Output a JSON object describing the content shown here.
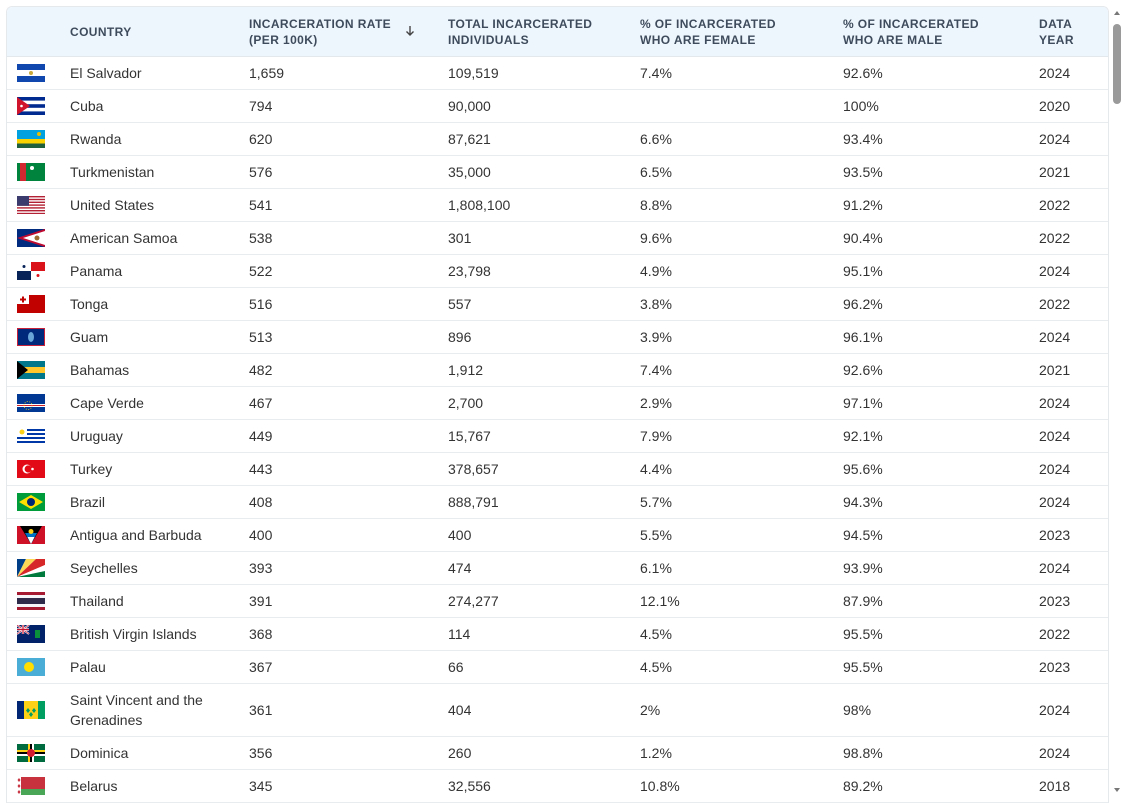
{
  "table": {
    "headers": [
      "COUNTRY",
      "INCARCERATION RATE (PER 100K)",
      "TOTAL INCARCERATED INDIVIDUALS",
      "% OF INCARCERATED WHO ARE FEMALE",
      "% OF INCARCERATED WHO ARE MALE",
      "DATA YEAR"
    ],
    "rows": [
      [
        "El Salvador",
        "1,659",
        "109,519",
        "7.4%",
        "92.6%",
        "2024"
      ],
      [
        "Cuba",
        "794",
        "90,000",
        null,
        "100%",
        "2020"
      ],
      [
        "Rwanda",
        "620",
        "87,621",
        "6.6%",
        "93.4%",
        "2024"
      ],
      [
        "Turkmenistan",
        "576",
        "35,000",
        "6.5%",
        "93.5%",
        "2021"
      ],
      [
        "United States",
        "541",
        "1,808,100",
        "8.8%",
        "91.2%",
        "2022"
      ],
      [
        "American Samoa",
        "538",
        "301",
        "9.6%",
        "90.4%",
        "2022"
      ],
      [
        "Panama",
        "522",
        "23,798",
        "4.9%",
        "95.1%",
        "2024"
      ],
      [
        "Tonga",
        "516",
        "557",
        "3.8%",
        "96.2%",
        "2022"
      ],
      [
        "Guam",
        "513",
        "896",
        "3.9%",
        "96.1%",
        "2024"
      ],
      [
        "Bahamas",
        "482",
        "1,912",
        "7.4%",
        "92.6%",
        "2021"
      ],
      [
        "Cape Verde",
        "467",
        "2,700",
        "2.9%",
        "97.1%",
        "2024"
      ],
      [
        "Uruguay",
        "449",
        "15,767",
        "7.9%",
        "92.1%",
        "2024"
      ],
      [
        "Turkey",
        "443",
        "378,657",
        "4.4%",
        "95.6%",
        "2024"
      ],
      [
        "Brazil",
        "408",
        "888,791",
        "5.7%",
        "94.3%",
        "2024"
      ],
      [
        "Antigua and Barbuda",
        "400",
        "400",
        "5.5%",
        "94.5%",
        "2023"
      ],
      [
        "Seychelles",
        "393",
        "474",
        "6.1%",
        "93.9%",
        "2024"
      ],
      [
        "Thailand",
        "391",
        "274,277",
        "12.1%",
        "87.9%",
        "2023"
      ],
      [
        "British Virgin Islands",
        "368",
        "114",
        "4.5%",
        "95.5%",
        "2022"
      ],
      [
        "Palau",
        "367",
        "66",
        "4.5%",
        "95.5%",
        "2023"
      ],
      [
        "Saint Vincent and the Grenadines",
        "361",
        "404",
        "2%",
        "98%",
        "2024"
      ],
      [
        "Dominica",
        "356",
        "260",
        "1.2%",
        "98.8%",
        "2024"
      ],
      [
        "Belarus",
        "345",
        "32,556",
        "10.8%",
        "89.2%",
        "2018"
      ]
    ]
  }
}
